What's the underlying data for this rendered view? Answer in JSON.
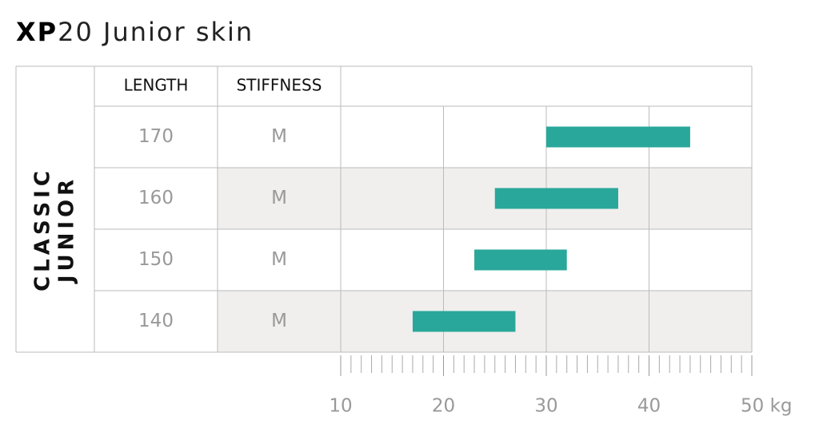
{
  "chart_data": {
    "type": "range-bar",
    "title": [
      "XP",
      "20 Junior skin"
    ],
    "group_label": [
      "CLASSIC",
      "JUNIOR"
    ],
    "columns": [
      "LENGTH",
      "STIFFNESS"
    ],
    "categories": [
      "170",
      "160",
      "150",
      "140"
    ],
    "stiffness": [
      "M",
      "M",
      "M",
      "M"
    ],
    "series": [
      {
        "color": "#29a79a",
        "start": [
          30,
          25,
          23,
          17
        ],
        "end": [
          44,
          37,
          32,
          27
        ]
      }
    ],
    "xlim": [
      10,
      50
    ],
    "xticks": [
      10,
      20,
      30,
      40,
      {
        "value": 50,
        "label": "50 kg"
      }
    ],
    "xminorticks": [
      11,
      12,
      13,
      14,
      15,
      16,
      17,
      18,
      19,
      21,
      22,
      23,
      24,
      25,
      26,
      27,
      28,
      29,
      31,
      32,
      33,
      34,
      35,
      36,
      37,
      38,
      39,
      41,
      42,
      43,
      44,
      45,
      46,
      47,
      48,
      49
    ],
    "grid": true
  }
}
